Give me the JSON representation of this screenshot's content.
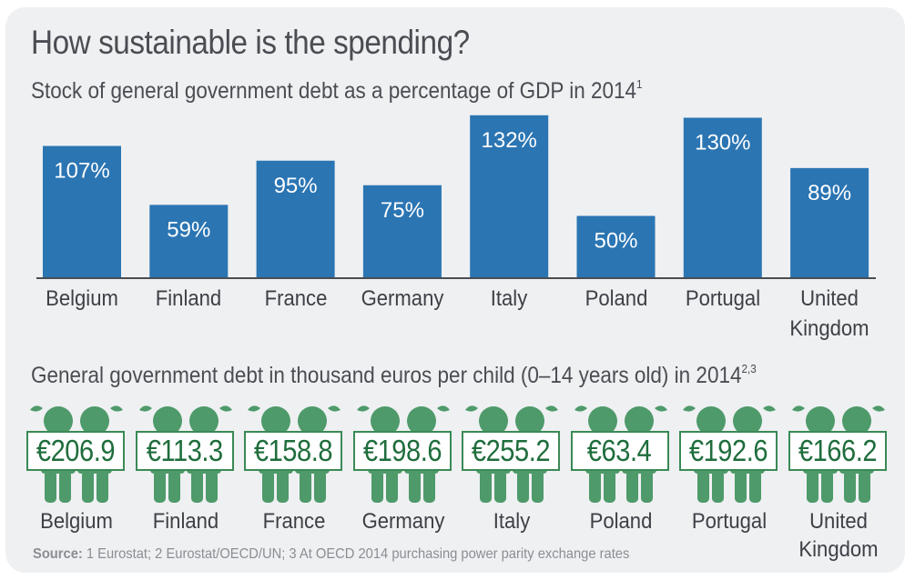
{
  "title": "How sustainable is the spending?",
  "subtitle": "Stock of general government debt as a percentage of GDP in 2014",
  "subtitle_note": "1",
  "subtitle2": "General government debt in thousand euros per child (0–14 years old) in 2014",
  "subtitle2_note": "2,3",
  "source_label": "Source:",
  "source_text": " 1 Eurostat; 2 Eurostat/OECD/UN; 3 At OECD 2014 purchasing power parity exchange rates",
  "colors": {
    "bar": "#2b75b3",
    "child": "#4e9a6a",
    "axis": "#4a4d52"
  },
  "icon": "child-pair-icon",
  "chart_data": [
    {
      "type": "bar",
      "categories": [
        "Belgium",
        "Finland",
        "France",
        "Germany",
        "Italy",
        "Poland",
        "Portugal",
        "United Kingdom"
      ],
      "category_lines": [
        [
          "Belgium"
        ],
        [
          "Finland"
        ],
        [
          "France"
        ],
        [
          "Germany"
        ],
        [
          "Italy"
        ],
        [
          "Poland"
        ],
        [
          "Portugal"
        ],
        [
          "United",
          "Kingdom"
        ]
      ],
      "values": [
        107,
        59,
        95,
        75,
        132,
        50,
        130,
        89
      ],
      "labels": [
        "107%",
        "59%",
        "95%",
        "75%",
        "132%",
        "50%",
        "130%",
        "89%"
      ],
      "unit": "%"
    },
    {
      "type": "table",
      "categories": [
        "Belgium",
        "Finland",
        "France",
        "Germany",
        "Italy",
        "Poland",
        "Portugal",
        "United Kingdom"
      ],
      "category_lines": [
        [
          "Belgium"
        ],
        [
          "Finland"
        ],
        [
          "France"
        ],
        [
          "Germany"
        ],
        [
          "Italy"
        ],
        [
          "Poland"
        ],
        [
          "Portugal"
        ],
        [
          "United",
          "Kingdom"
        ]
      ],
      "values": [
        206.9,
        113.3,
        158.8,
        198.6,
        255.2,
        63.4,
        192.6,
        166.2
      ],
      "labels": [
        "€206.9",
        "€113.3",
        "€158.8",
        "€198.6",
        "€255.2",
        "€63.4",
        "€192.6",
        "€166.2"
      ]
    }
  ]
}
